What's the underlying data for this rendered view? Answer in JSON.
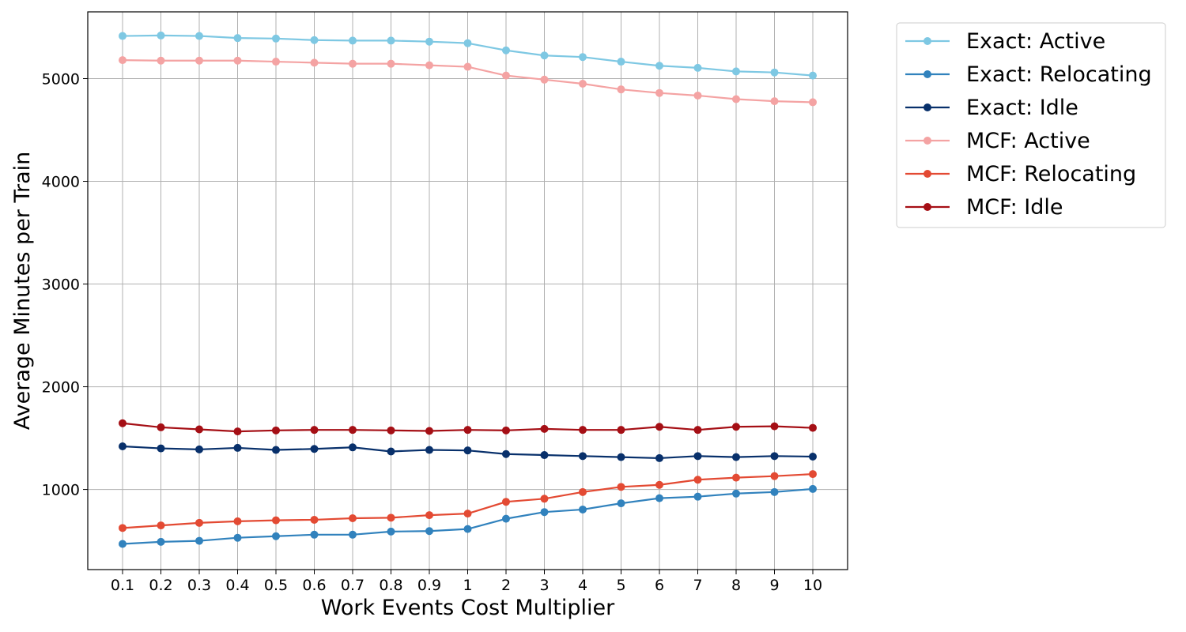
{
  "chart_data": {
    "type": "line",
    "title": "",
    "xlabel": "Work Events Cost Multiplier",
    "ylabel": "Average Minutes per Train",
    "categories": [
      "0.1",
      "0.2",
      "0.3",
      "0.4",
      "0.5",
      "0.6",
      "0.7",
      "0.8",
      "0.9",
      "1",
      "2",
      "3",
      "4",
      "5",
      "6",
      "7",
      "8",
      "9",
      "10"
    ],
    "ylim": [
      220,
      5650
    ],
    "yticks": [
      1000,
      2000,
      3000,
      4000,
      5000
    ],
    "grid": true,
    "legend_position": "outside-top-right",
    "series": [
      {
        "name": "Exact: Active",
        "color": "#7ec8e3",
        "values": [
          5415,
          5420,
          5415,
          5395,
          5390,
          5375,
          5370,
          5370,
          5360,
          5345,
          5275,
          5225,
          5210,
          5165,
          5125,
          5105,
          5070,
          5060,
          5030
        ]
      },
      {
        "name": "Exact: Relocating",
        "color": "#3182bd",
        "values": [
          470,
          490,
          500,
          530,
          545,
          560,
          560,
          590,
          595,
          615,
          715,
          780,
          805,
          865,
          915,
          930,
          960,
          975,
          1005
        ]
      },
      {
        "name": "Exact: Idle",
        "color": "#08306b",
        "values": [
          1420,
          1400,
          1390,
          1405,
          1385,
          1395,
          1410,
          1370,
          1385,
          1380,
          1345,
          1335,
          1325,
          1315,
          1305,
          1325,
          1315,
          1325,
          1320
        ]
      },
      {
        "name": "MCF: Active",
        "color": "#f4a3a3",
        "values": [
          5180,
          5175,
          5175,
          5175,
          5165,
          5155,
          5145,
          5145,
          5130,
          5115,
          5030,
          4990,
          4950,
          4895,
          4860,
          4835,
          4800,
          4780,
          4770
        ]
      },
      {
        "name": "MCF: Relocating",
        "color": "#e34a33",
        "values": [
          625,
          650,
          675,
          690,
          700,
          705,
          720,
          725,
          750,
          765,
          880,
          910,
          975,
          1025,
          1045,
          1095,
          1115,
          1130,
          1150
        ]
      },
      {
        "name": "MCF: Idle",
        "color": "#a50f15",
        "values": [
          1645,
          1605,
          1585,
          1565,
          1575,
          1580,
          1580,
          1575,
          1570,
          1580,
          1575,
          1590,
          1580,
          1580,
          1610,
          1580,
          1610,
          1615,
          1600
        ]
      }
    ]
  }
}
